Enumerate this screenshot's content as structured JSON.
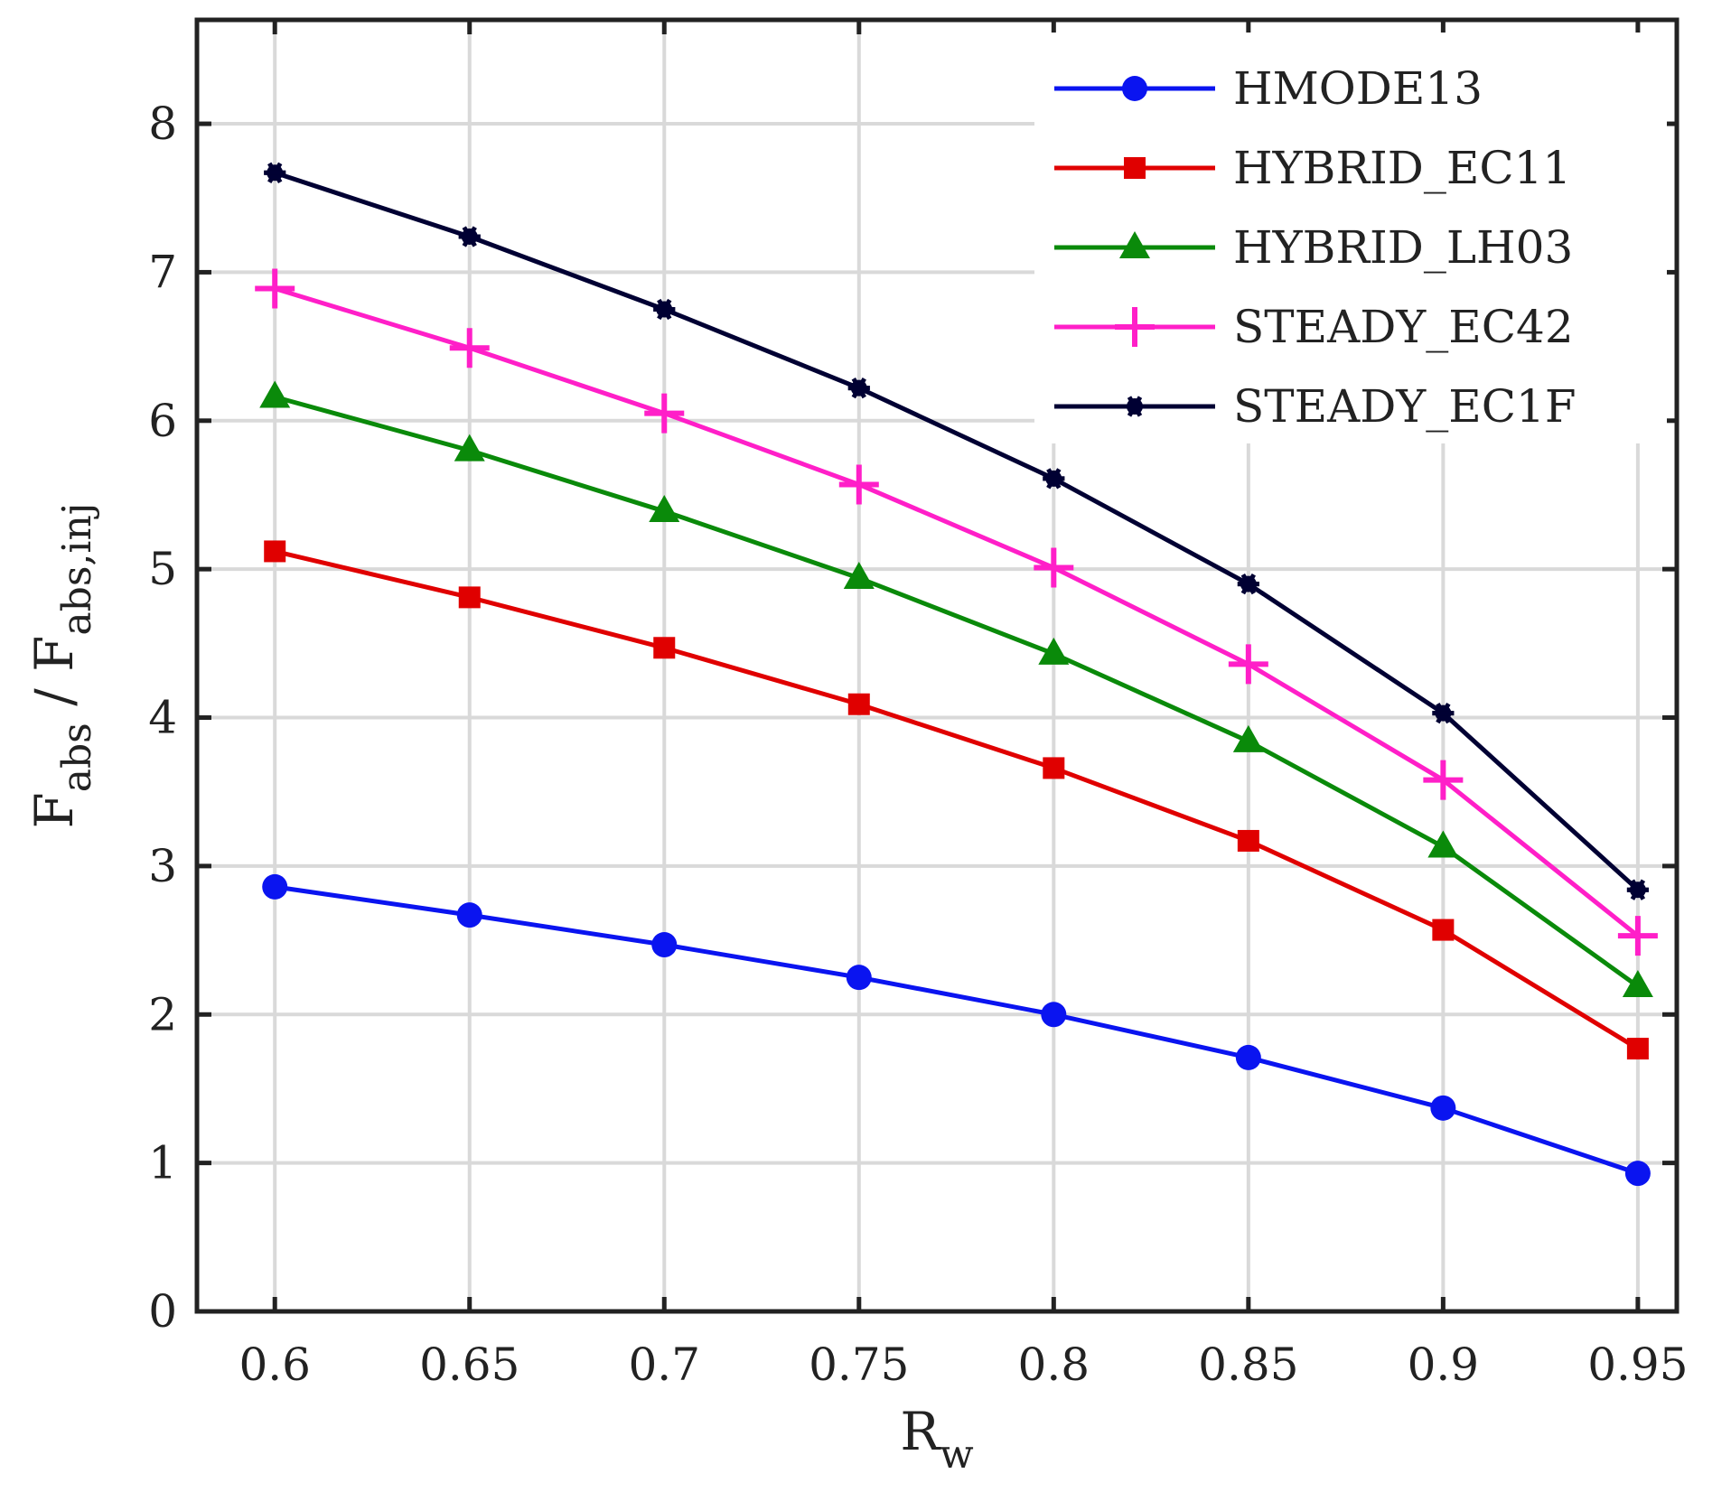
{
  "chart_data": {
    "type": "line",
    "xlabel_main": "R",
    "xlabel_sub": "w",
    "ylabel_f1": "F",
    "ylabel_sub1": "abs",
    "ylabel_sep": " / ",
    "ylabel_f2": "F",
    "ylabel_sub2": "abs,inj",
    "x": [
      0.6,
      0.65,
      0.7,
      0.75,
      0.8,
      0.85,
      0.9,
      0.95
    ],
    "xlim": [
      0.58,
      0.96
    ],
    "ylim": [
      0,
      8.7
    ],
    "xticks": [
      0.6,
      0.65,
      0.7,
      0.75,
      0.8,
      0.85,
      0.9,
      0.95
    ],
    "xtick_labels": [
      "0.6",
      "0.65",
      "0.7",
      "0.75",
      "0.8",
      "0.85",
      "0.9",
      "0.95"
    ],
    "yticks": [
      0,
      1,
      2,
      3,
      4,
      5,
      6,
      7,
      8
    ],
    "ytick_labels": [
      "0",
      "1",
      "2",
      "3",
      "4",
      "5",
      "6",
      "7",
      "8"
    ],
    "grid": true,
    "legend_position": "top-right",
    "series": [
      {
        "name": "HMODE13",
        "color": "#0a14f0",
        "marker": "circle",
        "values": [
          2.86,
          2.67,
          2.47,
          2.25,
          2.0,
          1.71,
          1.37,
          0.93
        ]
      },
      {
        "name": "HYBRID_EC11",
        "color": "#e00000",
        "marker": "square",
        "values": [
          5.12,
          4.81,
          4.47,
          4.09,
          3.66,
          3.17,
          2.57,
          1.77
        ]
      },
      {
        "name": "HYBRID_LH03",
        "color": "#0a8a0a",
        "marker": "triangle",
        "values": [
          6.16,
          5.8,
          5.39,
          4.94,
          4.43,
          3.84,
          3.13,
          2.19
        ]
      },
      {
        "name": "STEADY_EC42",
        "color": "#ff1fc8",
        "marker": "plus",
        "values": [
          6.89,
          6.49,
          6.05,
          5.57,
          5.01,
          4.36,
          3.58,
          2.53
        ]
      },
      {
        "name": "STEADY_EC1F",
        "color": "#000033",
        "marker": "asterisk",
        "values": [
          7.67,
          7.24,
          6.75,
          6.22,
          5.61,
          4.9,
          4.03,
          2.84
        ]
      }
    ]
  }
}
